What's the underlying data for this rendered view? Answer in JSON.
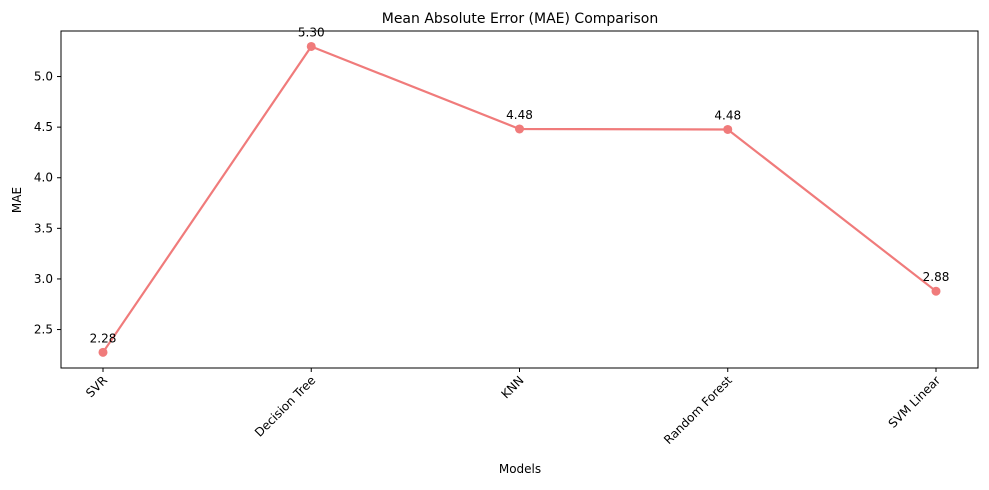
{
  "chart_data": {
    "type": "line",
    "title": "Mean Absolute Error (MAE) Comparison",
    "xlabel": "Models",
    "ylabel": "MAE",
    "categories": [
      "SVR",
      "Decision Tree",
      "KNN",
      "Random Forest",
      "SVM Linear"
    ],
    "series": [
      {
        "values": [
          2.275,
          5.297,
          4.482,
          4.477,
          2.879
        ],
        "data_labels": [
          "2.28",
          "5.30",
          "4.48",
          "4.48",
          "2.88"
        ],
        "color": "#f07b7b",
        "marker": "circle"
      }
    ],
    "ylim": [
      2.12,
      5.45
    ],
    "yticks": [
      2.5,
      3.0,
      3.5,
      4.0,
      4.5,
      5.0
    ],
    "ytick_labels": [
      "2.5",
      "3.0",
      "3.5",
      "4.0",
      "4.5",
      "5.0"
    ],
    "xtick_rotation": 45,
    "grid": false,
    "legend": "none"
  }
}
